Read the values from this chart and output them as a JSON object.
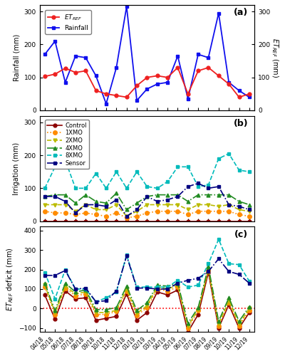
{
  "x_labels": [
    "04/18",
    "05/18",
    "06/18",
    "07/18",
    "08/18",
    "09/18",
    "10/18",
    "11/18",
    "12/18",
    "01/19",
    "02/19",
    "03/19",
    "04/19",
    "05/19",
    "06/19",
    "07/19",
    "08/19",
    "09/19",
    "10/19",
    "11/19",
    "12/19"
  ],
  "rainfall": [
    170,
    210,
    85,
    165,
    160,
    105,
    20,
    130,
    315,
    30,
    65,
    80,
    85,
    165,
    35,
    170,
    160,
    295,
    85,
    60,
    40
  ],
  "et_ref": [
    103,
    110,
    128,
    115,
    120,
    60,
    50,
    45,
    40,
    75,
    100,
    105,
    100,
    130,
    50,
    120,
    130,
    105,
    80,
    40,
    50
  ],
  "irrigation_control": [
    0,
    0,
    0,
    0,
    0,
    0,
    0,
    0,
    0,
    0,
    0,
    0,
    0,
    0,
    0,
    0,
    0,
    0,
    0,
    0,
    0
  ],
  "irrigation_1xmo": [
    30,
    25,
    25,
    20,
    25,
    20,
    15,
    25,
    10,
    15,
    25,
    30,
    30,
    30,
    20,
    30,
    30,
    30,
    30,
    20,
    15
  ],
  "irrigation_2xmo": [
    50,
    50,
    50,
    30,
    50,
    35,
    35,
    50,
    15,
    30,
    50,
    50,
    50,
    50,
    35,
    50,
    50,
    45,
    50,
    35,
    30
  ],
  "irrigation_4xmo": [
    75,
    80,
    80,
    55,
    80,
    60,
    55,
    85,
    35,
    55,
    75,
    80,
    80,
    80,
    60,
    80,
    80,
    80,
    80,
    60,
    50
  ],
  "irrigation_8xmo": [
    100,
    165,
    185,
    100,
    100,
    145,
    100,
    150,
    100,
    150,
    105,
    100,
    120,
    165,
    165,
    105,
    110,
    190,
    205,
    155,
    150
  ],
  "irrigation_sensor": [
    75,
    75,
    60,
    25,
    50,
    50,
    45,
    65,
    15,
    35,
    75,
    60,
    65,
    75,
    105,
    115,
    100,
    105,
    50,
    45,
    35
  ],
  "deficit_control": [
    70,
    -55,
    90,
    50,
    55,
    -60,
    -50,
    -40,
    75,
    -60,
    -20,
    85,
    70,
    95,
    -120,
    -30,
    185,
    -100,
    20,
    -100,
    -20
  ],
  "deficit_1xmo": [
    110,
    -30,
    105,
    65,
    75,
    -30,
    -30,
    -15,
    90,
    -35,
    5,
    100,
    90,
    110,
    -100,
    -10,
    195,
    -90,
    30,
    -90,
    -10
  ],
  "deficit_2xmo": [
    120,
    -20,
    115,
    75,
    85,
    -20,
    -20,
    -10,
    100,
    -25,
    15,
    110,
    100,
    120,
    -90,
    -5,
    200,
    -80,
    40,
    -80,
    0
  ],
  "deficit_4xmo": [
    130,
    -10,
    130,
    85,
    95,
    -5,
    -5,
    5,
    115,
    -10,
    30,
    120,
    115,
    130,
    -75,
    5,
    215,
    -65,
    55,
    -65,
    10
  ],
  "deficit_8xmo": [
    185,
    50,
    200,
    100,
    100,
    35,
    55,
    85,
    275,
    110,
    110,
    110,
    110,
    145,
    110,
    120,
    230,
    355,
    230,
    225,
    140
  ],
  "deficit_sensor": [
    170,
    170,
    195,
    100,
    105,
    35,
    40,
    90,
    270,
    105,
    105,
    100,
    100,
    130,
    145,
    155,
    190,
    255,
    190,
    175,
    130
  ],
  "panel_a_ylim": [
    0,
    320
  ],
  "panel_b_ylim": [
    0,
    320
  ],
  "panel_c_ylim": [
    -120,
    420
  ],
  "colors": {
    "et_ref": "#EE2020",
    "rainfall": "#1010EE",
    "control": "#8B0000",
    "1xmo": "#FF8C00",
    "2xmo": "#BBBB00",
    "4xmo": "#228B22",
    "8xmo": "#00BBBB",
    "sensor": "#000080"
  },
  "title_a": "(a)",
  "title_b": "(b)",
  "title_c": "(c)"
}
